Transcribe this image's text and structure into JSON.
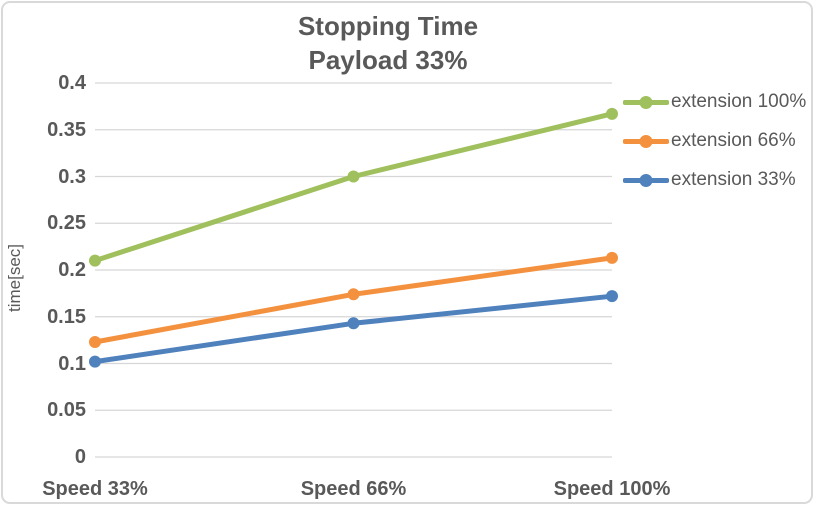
{
  "window": {
    "background_color": "#FFFFFF",
    "border_color": "#D9D9D9"
  },
  "chart_data": {
    "type": "line",
    "title_lines": [
      "Stopping Time",
      "Payload 33%"
    ],
    "ylabel": "time[sec]",
    "xlabel": "",
    "categories": [
      "Speed 33%",
      "Speed 66%",
      "Speed 100%"
    ],
    "series": [
      {
        "name": "extension 100%",
        "color": "#9FC05C",
        "values": [
          0.21,
          0.3,
          0.367
        ]
      },
      {
        "name": "extension 66%",
        "color": "#F4913E",
        "values": [
          0.123,
          0.174,
          0.213
        ]
      },
      {
        "name": "extension 33%",
        "color": "#4F81BD",
        "values": [
          0.102,
          0.143,
          0.172
        ]
      }
    ],
    "ylim": [
      0,
      0.4
    ],
    "ytick_step": 0.05,
    "ytick_labels": [
      "0",
      "0.05",
      "0.1",
      "0.15",
      "0.2",
      "0.25",
      "0.3",
      "0.35",
      "0.4"
    ],
    "grid": true,
    "gridline_color": "#D6D6D6",
    "text_color": "#595959",
    "legend_position": "right",
    "marker": "circle"
  }
}
